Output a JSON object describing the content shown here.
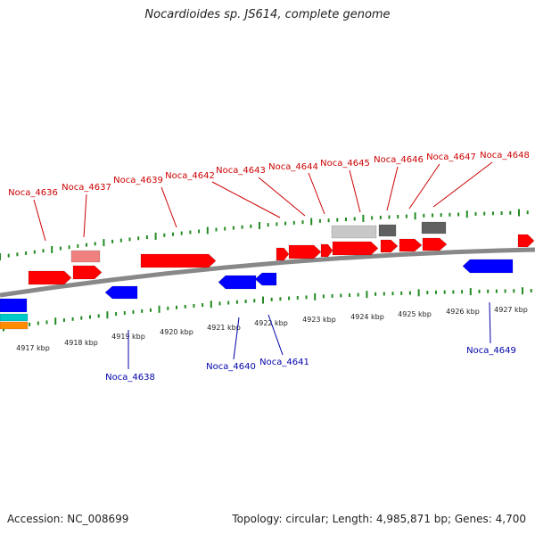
{
  "title": "Nocardioides sp. JS614, complete genome",
  "footer": {
    "accession": "Accession: NC_008699",
    "summary": "Topology: circular; Length: 4,985,871 bp; Genes: 4,700"
  },
  "colors": {
    "forward_gene": "#ff0000",
    "reverse_gene": "#0000ff",
    "forward_label": "#cc0000",
    "reverse_label": "#0000aa",
    "backbone": "#888888",
    "tick": "#228b22",
    "light_pink": "#f08080",
    "light_grey": "#c8c8c8",
    "dark_grey": "#606060",
    "cyan": "#00c8c8",
    "orange": "#ff8c00"
  },
  "scale_labels": [
    "4917 kbp",
    "4918 kbp",
    "4919 kbp",
    "4920 kbp",
    "4921 kbp",
    "4922 kbp",
    "4923 kbp",
    "4924 kbp",
    "4925 kbp",
    "4926 kbp",
    "4927 kbp"
  ],
  "forward_labels": [
    "Noca_4636",
    "Noca_4637",
    "Noca_4639",
    "Noca_4642",
    "Noca_4643",
    "Noca_4644",
    "Noca_4645",
    "Noca_4646",
    "Noca_4647",
    "Noca_4648"
  ],
  "reverse_labels": [
    "Noca_4638",
    "Noca_4640",
    "Noca_4641",
    "Noca_4649"
  ]
}
